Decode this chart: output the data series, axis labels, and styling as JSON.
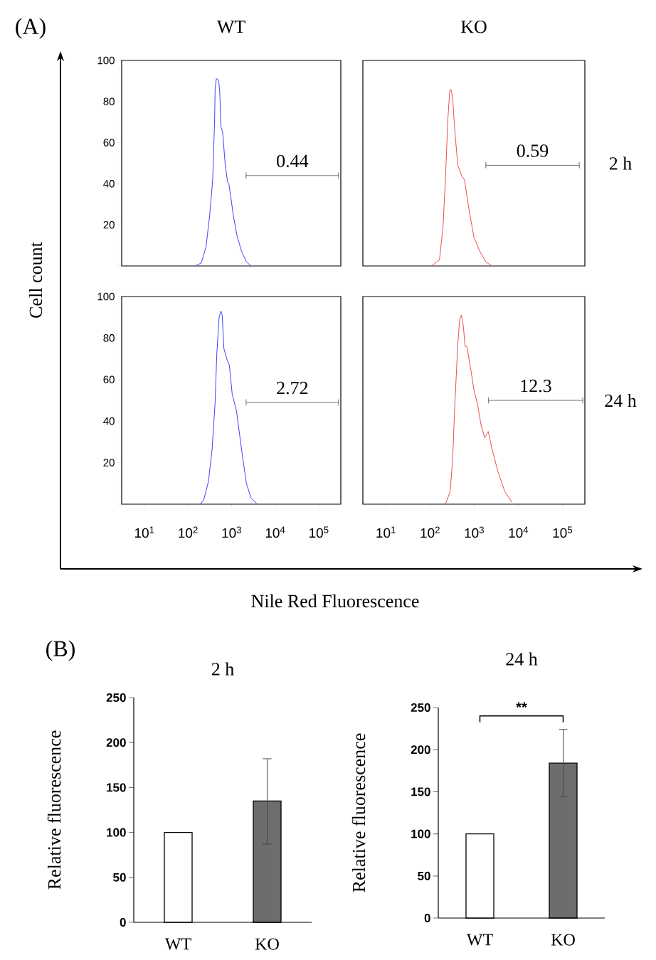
{
  "chart_data": [
    {
      "type": "line",
      "title": "WT",
      "ylabel": "Cell count",
      "annotations": [
        "(A)",
        {
          "text": "0.44",
          "x": 24700,
          "y": 44
        }
      ],
      "log": "x",
      "xlim": [
        3,
        320000
      ],
      "ylim": [
        0,
        100
      ],
      "tick_labels": "y",
      "marker": "none",
      "yticks": [
        {
          "value": 0,
          "label": null
        },
        20,
        40,
        60,
        80,
        100
      ],
      "x": [
        148,
        202,
        259,
        313,
        368,
        407,
        418,
        445,
        473,
        505,
        537,
        565,
        624,
        708,
        802,
        863,
        966,
        1094,
        1321,
        1698,
        2183,
        2799
      ],
      "series": [
        {
          "color": "#2b2bff",
          "values": [
            0,
            1.5,
            9.5,
            24.5,
            42,
            71,
            86,
            91,
            91,
            90,
            84,
            68,
            65,
            50,
            41,
            40,
            33,
            24.5,
            15,
            7,
            2,
            0
          ]
        },
        {
          "color": "#5a5a5a",
          "x": [
            2150,
            284000
          ],
          "values": [
            44,
            44
          ],
          "errors": [
            1.5,
            1.5
          ]
        }
      ]
    },
    {
      "type": "line",
      "title": "KO",
      "y2label": "2 h",
      "annotations": [
        {
          "text": "0.59",
          "x": 20900,
          "y": 49
        }
      ],
      "log": "x",
      "xlim": [
        3,
        320000
      ],
      "ylim": [
        0,
        100
      ],
      "tick_labels": false,
      "marker": "none",
      "x": [
        108,
        163,
        196,
        222,
        252,
        278,
        295,
        323,
        365,
        424,
        515,
        598,
        767,
        984,
        1343,
        1828,
        2495
      ],
      "series": [
        {
          "color": "#e83a3a",
          "values": [
            0,
            3,
            19,
            42,
            71,
            85,
            86,
            82,
            65,
            49,
            44,
            42,
            27,
            14,
            7,
            2,
            0
          ]
        },
        {
          "color": "#5a5a5a",
          "x": [
            1830,
            239000
          ],
          "values": [
            49,
            49
          ],
          "errors": [
            1.5,
            1.5
          ]
        }
      ]
    },
    {
      "type": "line",
      "xlabel": "Nile Red Fluorescence",
      "annotations": [
        {
          "text": "2.72",
          "x": 24700,
          "y": 49
        }
      ],
      "log": "x",
      "xlim": [
        3,
        320000
      ],
      "ylim": [
        0,
        100
      ],
      "marker": "none",
      "xticks": [
        {
          "value": 10,
          "label": "10$^{1}$"
        },
        {
          "value": 100,
          "label": "10$^{2}$"
        },
        {
          "value": 1000,
          "label": "10$^{3}$"
        },
        {
          "value": 10000,
          "label": "10$^{4}$"
        },
        {
          "value": 100000,
          "label": "10$^{5}$"
        }
      ],
      "yticks": [
        {
          "value": 0,
          "label": null
        },
        20,
        40,
        60,
        80,
        100
      ],
      "x": [
        190,
        229,
        294,
        355,
        418,
        456,
        516,
        565,
        609,
        664,
        802,
        887,
        1030,
        1291,
        1698,
        2183,
        2799,
        3837
      ],
      "series": [
        {
          "color": "#2b2bff",
          "values": [
            0,
            2,
            11,
            26,
            49,
            72,
            90,
            93,
            91,
            75,
            69,
            67,
            53,
            45,
            26,
            10,
            3,
            0
          ]
        },
        {
          "color": "#5a5a5a",
          "x": [
            2150,
            284000
          ],
          "values": [
            49,
            49
          ],
          "errors": [
            1.5,
            1.5
          ]
        }
      ]
    },
    {
      "type": "line",
      "y2label": "24 h",
      "annotations": [
        {
          "text": "12.3",
          "x": 24650,
          "y": 50
        }
      ],
      "log": "x",
      "xlim": [
        3,
        320000
      ],
      "ylim": [
        0,
        100
      ],
      "tick_labels": "x",
      "marker": "none",
      "xticks": [
        {
          "value": 10,
          "label": "10$^{1}$"
        },
        {
          "value": 100,
          "label": "10$^{2}$"
        },
        {
          "value": 1000,
          "label": "10$^{3}$"
        },
        {
          "value": 10000,
          "label": "10$^{4}$"
        },
        {
          "value": 100000,
          "label": "10$^{5}$"
        }
      ],
      "x": [
        222,
        284,
        323,
        365,
        424,
        468,
        511,
        564,
        621,
        679,
        818,
        984,
        1186,
        1429,
        1722,
        2075,
        2495,
        3404,
        4932,
        7161
      ],
      "series": [
        {
          "color": "#e83a3a",
          "values": [
            0,
            6,
            21,
            49,
            77,
            89,
            91,
            86,
            76,
            76,
            66,
            55,
            48,
            38,
            32,
            35,
            27,
            16,
            6,
            1
          ]
        },
        {
          "color": "#5a5a5a",
          "x": [
            2110,
            288000
          ],
          "values": [
            50,
            50
          ],
          "errors": [
            1.5,
            1.5
          ]
        }
      ]
    },
    {
      "type": "bar",
      "title": "2 h",
      "ylabel": "Relative fluorescence",
      "annotations": [
        "(B)"
      ],
      "categories": [
        "WT",
        "KO"
      ],
      "values": [
        100,
        135
      ],
      "colors": [
        "#ffffff",
        "#6d6d6d"
      ],
      "errors": [
        null,
        [
          87,
          182
        ]
      ],
      "ylim": [
        0,
        250
      ],
      "yticks": [
        0,
        50,
        100,
        150,
        200,
        250
      ]
    },
    {
      "type": "bar",
      "title": "24 h",
      "ylabel": "Relative fluorescence",
      "annotations": [
        "**"
      ],
      "categories": [
        "WT",
        "KO"
      ],
      "values": [
        100,
        184
      ],
      "colors": [
        "#ffffff",
        "#6d6d6d"
      ],
      "errors": [
        null,
        [
          144,
          224
        ]
      ],
      "ylim": [
        0,
        250
      ],
      "yticks": [
        0,
        50,
        100,
        150,
        200,
        250
      ]
    }
  ]
}
